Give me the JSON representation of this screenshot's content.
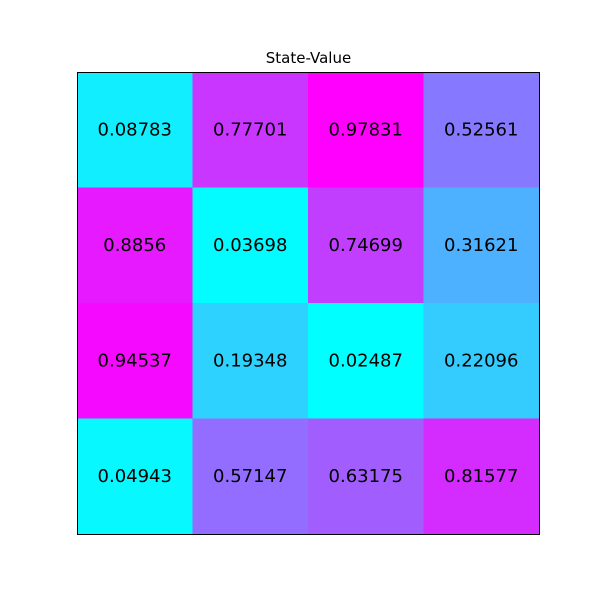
{
  "chart_data": {
    "type": "heatmap",
    "title": "State-Value",
    "colormap": "cool",
    "value_range": [
      0.02487,
      0.97831
    ],
    "rows": 4,
    "cols": 4,
    "values": [
      [
        0.08783,
        0.77701,
        0.97831,
        0.52561
      ],
      [
        0.8856,
        0.03698,
        0.74699,
        0.31621
      ],
      [
        0.94537,
        0.19348,
        0.02487,
        0.22096
      ],
      [
        0.04943,
        0.57147,
        0.63175,
        0.81577
      ]
    ],
    "labels": [
      [
        "0.08783",
        "0.77701",
        "0.97831",
        "0.52561"
      ],
      [
        "0.8856",
        "0.03698",
        "0.74699",
        "0.31621"
      ],
      [
        "0.94537",
        "0.19348",
        "0.02487",
        "0.22096"
      ],
      [
        "0.04943",
        "0.57147",
        "0.63175",
        "0.81577"
      ]
    ],
    "axes_visible": false,
    "grid": false,
    "legend": "none"
  }
}
